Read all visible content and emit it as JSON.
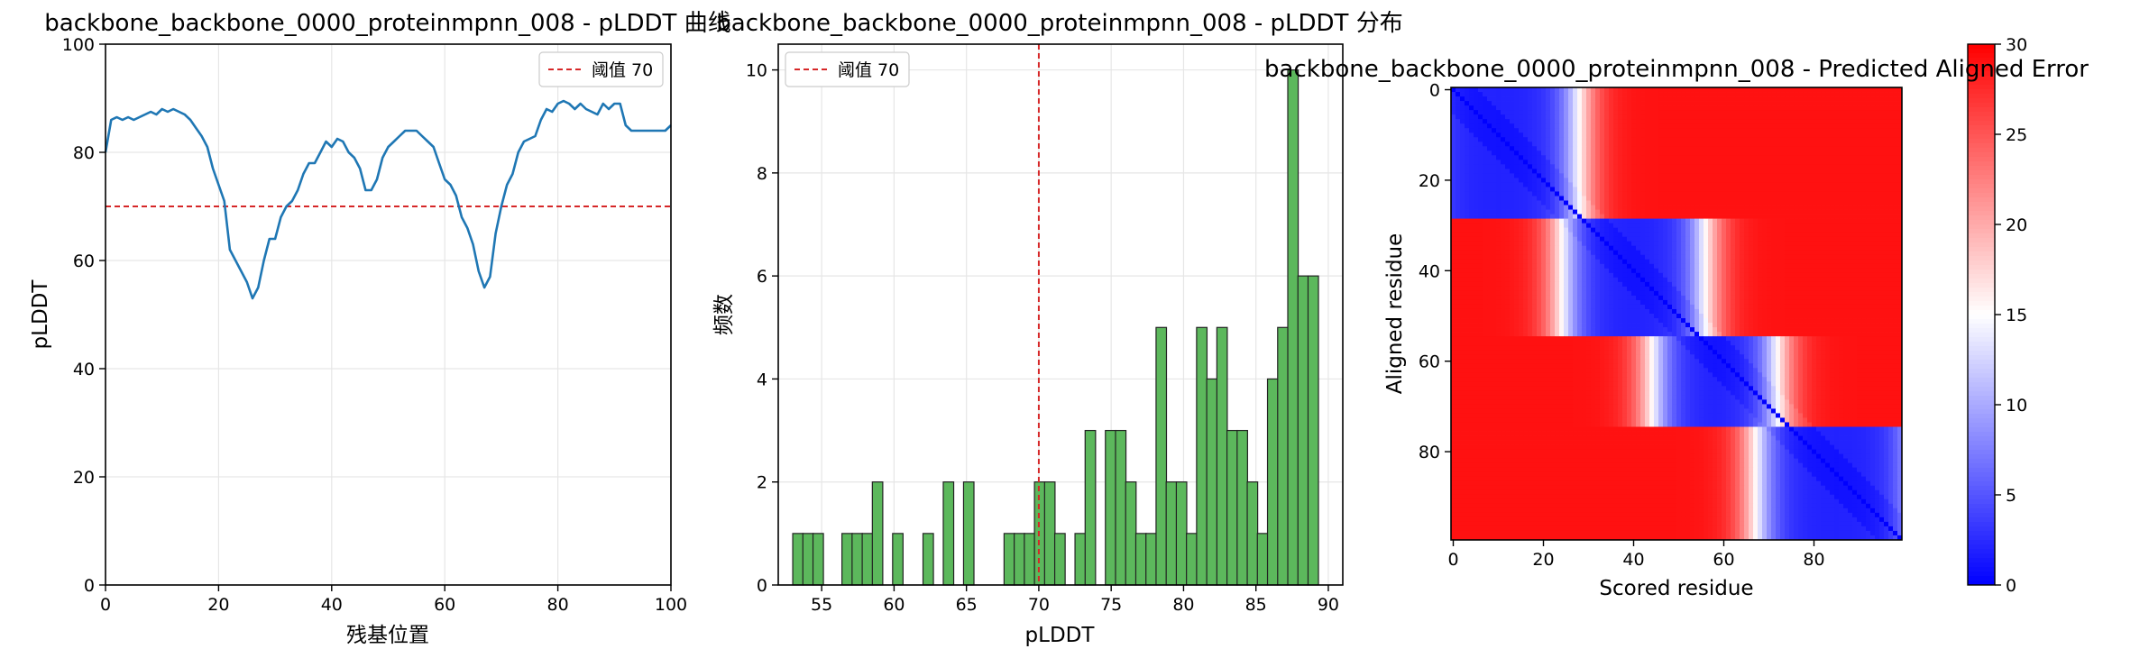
{
  "chart_data": [
    {
      "type": "line",
      "title": "backbone_backbone_0000_proteinmpnn_008 - pLDDT 曲线",
      "xlabel": "残基位置",
      "ylabel": "pLDDT",
      "xlim": [
        0,
        100
      ],
      "ylim": [
        0,
        100
      ],
      "xticks": [
        0,
        20,
        40,
        60,
        80,
        100
      ],
      "yticks": [
        0,
        20,
        40,
        60,
        80,
        100
      ],
      "grid": true,
      "legend_position": "top-right",
      "color": "#1f77b4",
      "threshold": {
        "value": 70,
        "label": "阈值 70",
        "color": "#d62728",
        "style": "dashed"
      },
      "x": [
        0,
        1,
        2,
        3,
        4,
        5,
        6,
        7,
        8,
        9,
        10,
        11,
        12,
        13,
        14,
        15,
        16,
        17,
        18,
        19,
        20,
        21,
        22,
        23,
        24,
        25,
        26,
        27,
        28,
        29,
        30,
        31,
        32,
        33,
        34,
        35,
        36,
        37,
        38,
        39,
        40,
        41,
        42,
        43,
        44,
        45,
        46,
        47,
        48,
        49,
        50,
        51,
        52,
        53,
        54,
        55,
        56,
        57,
        58,
        59,
        60,
        61,
        62,
        63,
        64,
        65,
        66,
        67,
        68,
        69,
        70,
        71,
        72,
        73,
        74,
        75,
        76,
        77,
        78,
        79,
        80,
        81,
        82,
        83,
        84,
        85,
        86,
        87,
        88,
        89,
        90,
        91,
        92,
        93,
        94,
        95,
        96,
        97,
        98,
        99,
        100
      ],
      "y": [
        80,
        86,
        86.5,
        86,
        86.5,
        86,
        86.5,
        87,
        87.5,
        87,
        88,
        87.5,
        88,
        87.5,
        87,
        86,
        84.5,
        83,
        81,
        77,
        74,
        71,
        62,
        60,
        58,
        56,
        53,
        55,
        60,
        64,
        64,
        68,
        70,
        71,
        73,
        76,
        78,
        78,
        80,
        82,
        81,
        82.5,
        82,
        80,
        79,
        77,
        73,
        73,
        75,
        79,
        81,
        82,
        83,
        84,
        84,
        84,
        83,
        82,
        81,
        78,
        75,
        74,
        72,
        68,
        66,
        63,
        58,
        55,
        57,
        65,
        70,
        74,
        76,
        80,
        82,
        82.5,
        83,
        86,
        88,
        87.5,
        89,
        89.5,
        89,
        88,
        89,
        88,
        87.5,
        87,
        89,
        88,
        89,
        89,
        85,
        84,
        84,
        84,
        84,
        84,
        84,
        84,
        85
      ]
    },
    {
      "type": "bar",
      "title": "backbone_backbone_0000_proteinmpnn_008 - pLDDT 分布",
      "xlabel": "pLDDT",
      "ylabel": "频数",
      "xlim": [
        52,
        91
      ],
      "ylim": [
        0,
        10.5
      ],
      "xticks": [
        55,
        60,
        65,
        70,
        75,
        80,
        85,
        90
      ],
      "yticks": [
        0,
        2,
        4,
        6,
        8,
        10
      ],
      "grid": true,
      "legend_position": "top-left",
      "bar_color": "#5cb85c",
      "edge_color": "#222222",
      "bin_width": 0.72,
      "threshold": {
        "value": 70,
        "label": "阈值 70",
        "color": "#d62728",
        "style": "dashed"
      },
      "bins": [
        {
          "x": 53.0,
          "count": 1
        },
        {
          "x": 53.7,
          "count": 1
        },
        {
          "x": 54.4,
          "count": 1
        },
        {
          "x": 56.4,
          "count": 1
        },
        {
          "x": 57.1,
          "count": 1
        },
        {
          "x": 57.8,
          "count": 1
        },
        {
          "x": 58.5,
          "count": 2
        },
        {
          "x": 59.9,
          "count": 1
        },
        {
          "x": 62.0,
          "count": 1
        },
        {
          "x": 63.4,
          "count": 2
        },
        {
          "x": 64.8,
          "count": 2
        },
        {
          "x": 67.6,
          "count": 1
        },
        {
          "x": 68.3,
          "count": 1
        },
        {
          "x": 69.0,
          "count": 1
        },
        {
          "x": 69.7,
          "count": 2
        },
        {
          "x": 70.4,
          "count": 2
        },
        {
          "x": 71.1,
          "count": 1
        },
        {
          "x": 72.5,
          "count": 1
        },
        {
          "x": 73.2,
          "count": 3
        },
        {
          "x": 74.6,
          "count": 3
        },
        {
          "x": 75.3,
          "count": 3
        },
        {
          "x": 76.0,
          "count": 2
        },
        {
          "x": 76.7,
          "count": 1
        },
        {
          "x": 77.4,
          "count": 1
        },
        {
          "x": 78.1,
          "count": 5
        },
        {
          "x": 78.8,
          "count": 2
        },
        {
          "x": 79.5,
          "count": 2
        },
        {
          "x": 80.2,
          "count": 1
        },
        {
          "x": 80.9,
          "count": 5
        },
        {
          "x": 81.6,
          "count": 4
        },
        {
          "x": 82.3,
          "count": 5
        },
        {
          "x": 83.0,
          "count": 3
        },
        {
          "x": 83.7,
          "count": 3
        },
        {
          "x": 84.4,
          "count": 2
        },
        {
          "x": 85.1,
          "count": 1
        },
        {
          "x": 85.8,
          "count": 4
        },
        {
          "x": 86.5,
          "count": 5
        },
        {
          "x": 87.2,
          "count": 10
        },
        {
          "x": 87.9,
          "count": 6
        },
        {
          "x": 88.6,
          "count": 6
        }
      ]
    },
    {
      "type": "heatmap",
      "title": "backbone_backbone_0000_proteinmpnn_008 - Predicted Aligned Error",
      "xlabel": "Scored residue",
      "ylabel": "Aligned residue",
      "size": 100,
      "xticks": [
        0,
        20,
        40,
        60,
        80
      ],
      "yticks": [
        0,
        20,
        40,
        60,
        80
      ],
      "colormap": "bwr",
      "vmin": 0,
      "vmax": 30,
      "colorbar_ticks": [
        0,
        5,
        10,
        15,
        20,
        25,
        30
      ],
      "segments": [
        {
          "start": 0,
          "end": 29,
          "center": 10,
          "half_width": 18
        },
        {
          "start": 29,
          "end": 55,
          "center": 40,
          "half_width": 16
        },
        {
          "start": 55,
          "end": 75,
          "center": 58,
          "half_width": 14
        },
        {
          "start": 75,
          "end": 100,
          "center": 85,
          "half_width": 18
        }
      ]
    }
  ]
}
